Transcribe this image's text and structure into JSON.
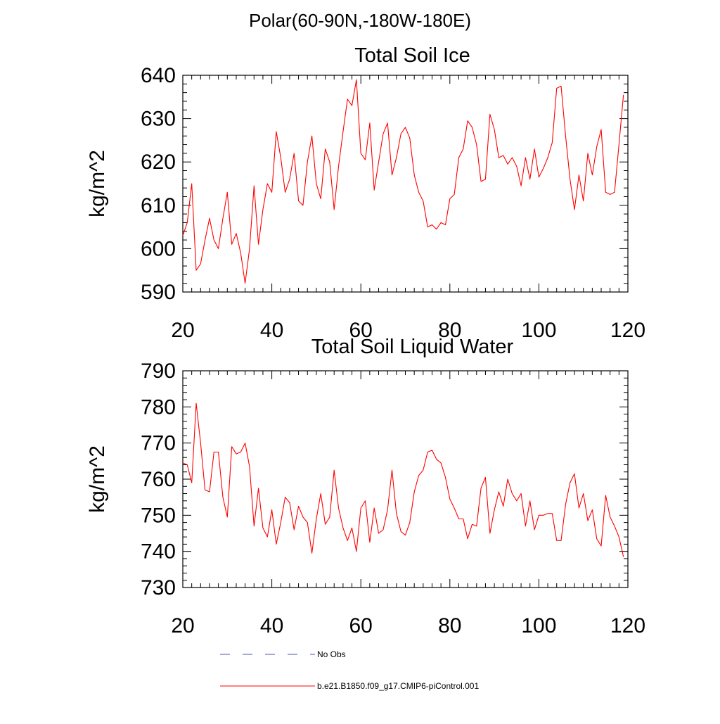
{
  "page_title": "Polar(60-90N,-180W-180E)",
  "legend": {
    "items": [
      {
        "label": "No Obs",
        "style": "dashed",
        "color": "#4a5aa8"
      },
      {
        "label": "b.e21.B1850.f09_g17.CMIP6-piControl.001",
        "style": "solid",
        "color": "#ff0000"
      }
    ]
  },
  "chart_data": [
    {
      "type": "line",
      "title": "Total Soil Ice",
      "xlabel": "",
      "ylabel": "kg/m^2",
      "xlim": [
        20,
        120
      ],
      "ylim": [
        590,
        640
      ],
      "x_ticks": [
        20,
        40,
        60,
        80,
        100,
        120
      ],
      "y_ticks": [
        590,
        600,
        610,
        620,
        630,
        640
      ],
      "series": [
        {
          "name": "b.e21.B1850.f09_g17.CMIP6-piControl.001",
          "color": "#ff0000",
          "x": [
            20,
            21,
            22,
            23,
            24,
            25,
            26,
            27,
            28,
            29,
            30,
            31,
            32,
            33,
            34,
            35,
            36,
            37,
            38,
            39,
            40,
            41,
            42,
            43,
            44,
            45,
            46,
            47,
            48,
            49,
            50,
            51,
            52,
            53,
            54,
            55,
            56,
            57,
            58,
            59,
            60,
            61,
            62,
            63,
            64,
            65,
            66,
            67,
            68,
            69,
            70,
            71,
            72,
            73,
            74,
            75,
            76,
            77,
            78,
            79,
            80,
            81,
            82,
            83,
            84,
            85,
            86,
            87,
            88,
            89,
            90,
            91,
            92,
            93,
            94,
            95,
            96,
            97,
            98,
            99,
            100,
            101,
            102,
            103,
            104,
            105,
            106,
            107,
            108,
            109,
            110,
            111,
            112,
            113,
            114,
            115,
            116,
            117,
            118,
            119
          ],
          "values": [
            603,
            606,
            615,
            595,
            596.5,
            602,
            607,
            602,
            600,
            607,
            613,
            601,
            603.5,
            599,
            592,
            600,
            614.5,
            601,
            609,
            615,
            613,
            627,
            621,
            613,
            616,
            622,
            611,
            610,
            620,
            626,
            615,
            611.5,
            623,
            620,
            609,
            619,
            627,
            634.5,
            633,
            639,
            622,
            620.5,
            629,
            613.5,
            620,
            626.5,
            629,
            617,
            621,
            626.5,
            628,
            625.5,
            617,
            613,
            611,
            605,
            605.5,
            604.5,
            606,
            605.5,
            611.5,
            612.5,
            621,
            623,
            629.5,
            628,
            624,
            615.5,
            616,
            631,
            627.5,
            621,
            621.5,
            619.5,
            621,
            619,
            614.5,
            621,
            616,
            623,
            616.5,
            618.5,
            621,
            624.5,
            637,
            637.5,
            626,
            616,
            609,
            617,
            611,
            622,
            617,
            623.5,
            627.5,
            613,
            612.5,
            613,
            624,
            635.5
          ]
        }
      ]
    },
    {
      "type": "line",
      "title": "Total Soil Liquid Water",
      "xlabel": "",
      "ylabel": "kg/m^2",
      "xlim": [
        20,
        120
      ],
      "ylim": [
        730,
        790
      ],
      "x_ticks": [
        20,
        40,
        60,
        80,
        100,
        120
      ],
      "y_ticks": [
        730,
        740,
        750,
        760,
        770,
        780,
        790
      ],
      "series": [
        {
          "name": "b.e21.B1850.f09_g17.CMIP6-piControl.001",
          "color": "#ff0000",
          "x": [
            20,
            21,
            22,
            23,
            24,
            25,
            26,
            27,
            28,
            29,
            30,
            31,
            32,
            33,
            34,
            35,
            36,
            37,
            38,
            39,
            40,
            41,
            42,
            43,
            44,
            45,
            46,
            47,
            48,
            49,
            50,
            51,
            52,
            53,
            54,
            55,
            56,
            57,
            58,
            59,
            60,
            61,
            62,
            63,
            64,
            65,
            66,
            67,
            68,
            69,
            70,
            71,
            72,
            73,
            74,
            75,
            76,
            77,
            78,
            79,
            80,
            81,
            82,
            83,
            84,
            85,
            86,
            87,
            88,
            89,
            90,
            91,
            92,
            93,
            94,
            95,
            96,
            97,
            98,
            99,
            100,
            101,
            102,
            103,
            104,
            105,
            106,
            107,
            108,
            109,
            110,
            111,
            112,
            113,
            114,
            115,
            116,
            117,
            118,
            119
          ],
          "values": [
            764.5,
            764,
            759,
            781,
            770,
            757,
            756.5,
            767.5,
            767.5,
            755,
            749.5,
            769,
            767,
            767.5,
            770,
            763.5,
            747,
            757.5,
            746.5,
            744,
            751.5,
            742,
            748,
            755,
            753.5,
            746,
            752.5,
            749.5,
            748,
            739.5,
            749,
            756,
            747.5,
            749.5,
            762.5,
            752,
            746.5,
            743,
            746.5,
            740,
            752,
            754,
            742.5,
            752,
            745,
            746,
            751.5,
            762.5,
            750.5,
            745.5,
            744.5,
            748,
            756.5,
            761,
            762.5,
            767.5,
            768,
            765.5,
            764.5,
            760.5,
            754.5,
            752,
            749,
            749,
            743.5,
            747.5,
            747,
            757.5,
            760.5,
            745,
            751.5,
            756.5,
            752.5,
            760,
            756,
            754,
            756,
            747,
            754,
            746,
            750,
            750,
            750.5,
            750.5,
            743,
            743,
            753,
            759,
            761.5,
            752,
            756,
            748.5,
            751.5,
            743.5,
            741.5,
            755.5,
            749.5,
            747,
            744,
            738.5
          ]
        }
      ]
    }
  ]
}
